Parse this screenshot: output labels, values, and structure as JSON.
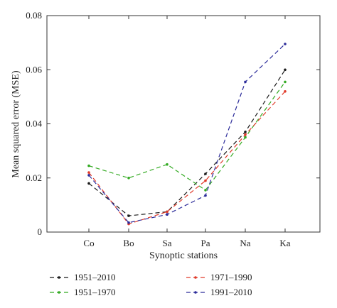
{
  "chart_data": {
    "type": "line",
    "xlabel": "Synoptic stations",
    "ylabel": "Mean squared error (MSE)",
    "categories": [
      "Co",
      "Bo",
      "Sa",
      "Pa",
      "Na",
      "Ka"
    ],
    "ylim": [
      0,
      0.08
    ],
    "yticks": [
      "0",
      "0.02",
      "0.04",
      "0.06",
      "0.08"
    ],
    "line_style": "dashed",
    "legend_position": "bottom",
    "series": [
      {
        "name": "1951–2010",
        "color": "#1a1a1a",
        "values": [
          0.018,
          0.006,
          0.0075,
          0.0215,
          0.037,
          0.06
        ]
      },
      {
        "name": "1951–1970",
        "color": "#33aa22",
        "values": [
          0.0245,
          0.02,
          0.025,
          0.0155,
          0.035,
          0.0555
        ]
      },
      {
        "name": "1971–1990",
        "color": "#e03a2a",
        "values": [
          0.022,
          0.003,
          0.0075,
          0.019,
          0.036,
          0.052
        ]
      },
      {
        "name": "1991–2010",
        "color": "#2c2c9a",
        "values": [
          0.021,
          0.0035,
          0.0065,
          0.0135,
          0.0555,
          0.0695
        ]
      }
    ]
  }
}
